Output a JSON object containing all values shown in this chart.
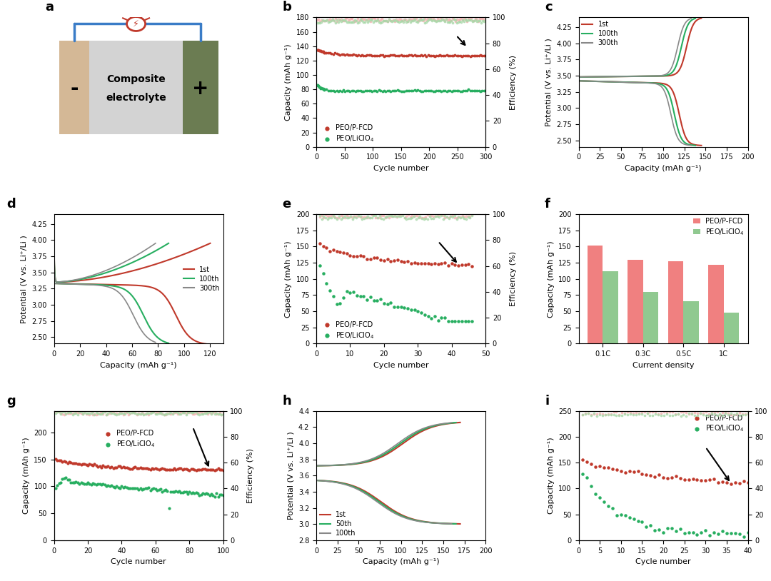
{
  "panel_a": {
    "left_color": "#d4b896",
    "center_color": "#d3d3d3",
    "right_color": "#6b7c52",
    "text_line1": "Composite",
    "text_line2": "electrolyte",
    "minus": "-",
    "plus": "+"
  },
  "panel_b": {
    "ylabel_left": "Capacity (mAh g⁻¹)",
    "ylabel_right": "Efficiency (%)",
    "xlabel": "Cycle number",
    "ylim_left": [
      0,
      180
    ],
    "ylim_right": [
      0,
      100
    ],
    "xlim": [
      0,
      300
    ]
  },
  "panel_c": {
    "xlabel": "Capacity (mAh g⁻¹)",
    "ylabel": "Potential (V vs. Li⁺/Li )",
    "xlim": [
      0,
      200
    ],
    "ylim": [
      2.4,
      4.4
    ],
    "legend": [
      "1st",
      "100th",
      "300th"
    ],
    "colors": [
      "#c0392b",
      "#27ae60",
      "#888888"
    ],
    "cap_ends": [
      145,
      138,
      133
    ]
  },
  "panel_d": {
    "xlabel": "Capacity (mAh g⁻¹)",
    "ylabel": "Potential (V vs. Li⁺/Li )",
    "xlim": [
      0,
      130
    ],
    "ylim": [
      2.4,
      4.4
    ],
    "legend": [
      "1st",
      "100th",
      "300th"
    ],
    "colors": [
      "#c0392b",
      "#27ae60",
      "#888888"
    ],
    "cap_ends": [
      120,
      88,
      78
    ]
  },
  "panel_e": {
    "ylabel_left": "Capacity (mAh g⁻¹)",
    "ylabel_right": "Efficiency (%)",
    "xlabel": "Cycle number",
    "ylim_left": [
      0,
      200
    ],
    "ylim_right": [
      0,
      100
    ],
    "xlim": [
      0,
      50
    ]
  },
  "panel_f": {
    "categories": [
      "0.1C",
      "0.3C",
      "0.5C",
      "1C"
    ],
    "red_values": [
      152,
      130,
      127,
      122
    ],
    "green_values": [
      112,
      80,
      65,
      48
    ],
    "xlabel": "Current density",
    "ylabel": "Capacity (mAh g⁻¹)",
    "ylim": [
      0,
      200
    ],
    "red_color": "#f08080",
    "green_color": "#90c990"
  },
  "panel_g": {
    "ylabel_left": "Capacity (mAh g⁻¹)",
    "ylabel_right": "Efficiency (%)",
    "xlabel": "Cycle number",
    "ylim_left": [
      0,
      240
    ],
    "ylim_right": [
      0,
      100
    ],
    "xlim": [
      0,
      100
    ]
  },
  "panel_h": {
    "xlabel": "Capacity (mAh g⁻¹)",
    "ylabel": "Potential (V vs. Li⁺/Li )",
    "xlim": [
      0,
      200
    ],
    "ylim": [
      2.8,
      4.4
    ],
    "legend": [
      "1st",
      "50th",
      "100th"
    ],
    "colors": [
      "#c0392b",
      "#27ae60",
      "#888888"
    ],
    "cap_ends": [
      170,
      165,
      160
    ]
  },
  "panel_i": {
    "ylabel_left": "Capacity (mAh g⁻¹)",
    "ylabel_right": "Efficiency (%)",
    "xlabel": "Cycle number",
    "ylim_left": [
      0,
      250
    ],
    "ylim_right": [
      0,
      100
    ],
    "xlim": [
      0,
      40
    ]
  },
  "colors": {
    "red": "#c0392b",
    "green": "#27ae60",
    "red_light": "#f5b0b0",
    "green_light": "#a8d8a8",
    "gray": "#888888"
  }
}
